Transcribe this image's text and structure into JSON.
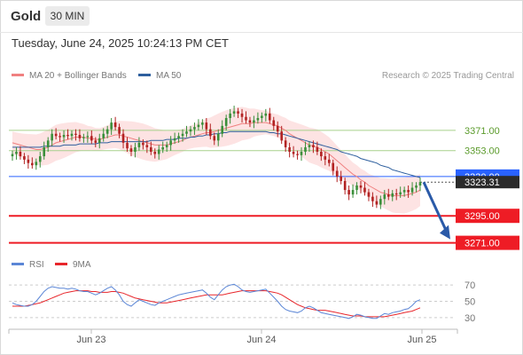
{
  "header": {
    "title": "Gold",
    "timeframe": "30 MIN",
    "datetime": "Tuesday, June 24, 2025 10:24:13 PM CET"
  },
  "legend": {
    "bollinger": {
      "label": "MA 20 + Bollinger Bands",
      "color": "#f08080"
    },
    "ma50": {
      "label": "MA 50",
      "color": "#2e5f9e"
    },
    "copyright": "Research © 2025 Trading Central"
  },
  "rsi_legend": {
    "rsi": {
      "label": "RSI",
      "color": "#5b86d6"
    },
    "ma9": {
      "label": "9MA",
      "color": "#e8262b"
    }
  },
  "colors": {
    "up": "#3a8f3a",
    "down": "#b22222",
    "band": "#fde3e3",
    "resistance": "#a7d08c",
    "support": "#ee1c25",
    "pivot": "#2962ff",
    "arrow": "#2a5aa8"
  },
  "chart_data": [
    {
      "type": "candlestick",
      "title": "Gold 30 MIN",
      "x_ticks": [
        "Jun 23",
        "Jun 24",
        "Jun 25"
      ],
      "ylim": [
        3262,
        3412
      ],
      "levels": [
        {
          "value": 3371.0,
          "label": "3371.00",
          "kind": "resistance"
        },
        {
          "value": 3353.0,
          "label": "3353.00",
          "kind": "resistance"
        },
        {
          "value": 3330.0,
          "label": "3330.00",
          "kind": "pivot"
        },
        {
          "value": 3295.0,
          "label": "3295.00",
          "kind": "support"
        },
        {
          "value": 3271.0,
          "label": "3271.00",
          "kind": "support"
        }
      ],
      "current_price_label": "3323.31",
      "forecast": {
        "from": 3325,
        "to": 3271,
        "direction": "down"
      },
      "series": [
        {
          "name": "Price",
          "values": [
            3350,
            3352,
            3348,
            3345,
            3342,
            3340,
            3343,
            3348,
            3356,
            3362,
            3368,
            3366,
            3365,
            3367,
            3366,
            3368,
            3367,
            3364,
            3365,
            3366,
            3362,
            3360,
            3364,
            3368,
            3372,
            3378,
            3374,
            3368,
            3360,
            3355,
            3352,
            3356,
            3360,
            3358,
            3356,
            3352,
            3350,
            3354,
            3356,
            3358,
            3362,
            3364,
            3366,
            3368,
            3370,
            3372,
            3374,
            3376,
            3378,
            3372,
            3366,
            3362,
            3368,
            3375,
            3382,
            3386,
            3388,
            3386,
            3383,
            3380,
            3378,
            3380,
            3382,
            3384,
            3386,
            3380,
            3375,
            3370,
            3362,
            3356,
            3352,
            3350,
            3349,
            3352,
            3356,
            3358,
            3356,
            3352,
            3348,
            3345,
            3342,
            3335,
            3330,
            3326,
            3318,
            3314,
            3318,
            3322,
            3320,
            3316,
            3312,
            3308,
            3305,
            3310,
            3314,
            3312,
            3315,
            3314,
            3316,
            3318,
            3316,
            3320,
            3322,
            3325
          ]
        },
        {
          "name": "MA 20",
          "values": [
            3360,
            3359,
            3358,
            3357,
            3356,
            3355,
            3354,
            3354,
            3355,
            3356,
            3358,
            3360,
            3361,
            3362,
            3363,
            3364,
            3365,
            3365,
            3365,
            3364,
            3364,
            3363,
            3363,
            3364,
            3365,
            3366,
            3367,
            3367,
            3366,
            3365,
            3364,
            3363,
            3362,
            3361,
            3360,
            3359,
            3358,
            3358,
            3358,
            3358,
            3359,
            3360,
            3361,
            3362,
            3364,
            3365,
            3366,
            3367,
            3368,
            3369,
            3369,
            3370,
            3371,
            3372,
            3373,
            3374,
            3375,
            3376,
            3377,
            3377,
            3377,
            3378,
            3378,
            3378,
            3378,
            3377,
            3376,
            3375,
            3373,
            3371,
            3368,
            3366,
            3364,
            3362,
            3360,
            3358,
            3357,
            3356,
            3354,
            3352,
            3350,
            3347,
            3344,
            3341,
            3338,
            3335,
            3332,
            3330,
            3327,
            3325,
            3322,
            3320,
            3318,
            3316,
            3315,
            3314,
            3313,
            3313,
            3313,
            3313,
            3314,
            3315,
            3316,
            3318
          ]
        },
        {
          "name": "MA 50",
          "values": [
            3356,
            3356,
            3356,
            3356,
            3356,
            3356,
            3356,
            3356,
            3357,
            3357,
            3357,
            3357,
            3357,
            3358,
            3358,
            3358,
            3358,
            3359,
            3359,
            3359,
            3359,
            3359,
            3360,
            3360,
            3360,
            3361,
            3361,
            3361,
            3361,
            3361,
            3361,
            3361,
            3361,
            3361,
            3361,
            3362,
            3362,
            3362,
            3362,
            3363,
            3363,
            3363,
            3364,
            3364,
            3364,
            3365,
            3365,
            3366,
            3366,
            3367,
            3367,
            3368,
            3368,
            3369,
            3369,
            3370,
            3370,
            3370,
            3370,
            3370,
            3370,
            3370,
            3370,
            3370,
            3370,
            3369,
            3369,
            3368,
            3368,
            3367,
            3366,
            3365,
            3364,
            3363,
            3362,
            3361,
            3360,
            3359,
            3358,
            3357,
            3356,
            3355,
            3354,
            3352,
            3351,
            3350,
            3349,
            3348,
            3346,
            3345,
            3344,
            3343,
            3342,
            3340,
            3339,
            3338,
            3336,
            3335,
            3334,
            3333,
            3332,
            3331,
            3330,
            3329
          ]
        }
      ]
    },
    {
      "type": "line",
      "title": "RSI",
      "ylim": [
        20,
        80
      ],
      "y_ticks": [
        70,
        50,
        30
      ],
      "series": [
        {
          "name": "RSI",
          "values": [
            48,
            46,
            45,
            44,
            44,
            46,
            50,
            56,
            62,
            66,
            68,
            67,
            66,
            66,
            65,
            66,
            65,
            63,
            62,
            62,
            60,
            58,
            60,
            63,
            66,
            68,
            64,
            58,
            50,
            46,
            44,
            48,
            52,
            50,
            48,
            46,
            45,
            48,
            50,
            52,
            54,
            56,
            58,
            59,
            60,
            61,
            62,
            63,
            64,
            60,
            55,
            52,
            58,
            64,
            68,
            70,
            71,
            68,
            64,
            62,
            61,
            62,
            63,
            64,
            65,
            60,
            55,
            50,
            44,
            40,
            38,
            37,
            36,
            38,
            42,
            44,
            42,
            39,
            36,
            35,
            34,
            33,
            32,
            31,
            30,
            29,
            31,
            34,
            33,
            31,
            30,
            29,
            29,
            32,
            35,
            34,
            36,
            37,
            38,
            40,
            41,
            45,
            50,
            52
          ]
        },
        {
          "name": "9MA",
          "values": [
            44,
            44,
            44,
            44,
            45,
            46,
            47,
            48,
            50,
            52,
            54,
            56,
            58,
            60,
            61,
            62,
            63,
            63,
            63,
            63,
            62,
            62,
            61,
            61,
            61,
            62,
            62,
            61,
            60,
            58,
            56,
            54,
            53,
            52,
            51,
            50,
            49,
            48,
            48,
            48,
            49,
            50,
            51,
            52,
            53,
            54,
            55,
            56,
            57,
            58,
            58,
            58,
            58,
            58,
            59,
            60,
            61,
            62,
            63,
            63,
            63,
            63,
            63,
            63,
            63,
            62,
            61,
            60,
            58,
            55,
            52,
            49,
            46,
            44,
            42,
            41,
            40,
            39,
            39,
            39,
            38,
            37,
            36,
            35,
            34,
            33,
            32,
            32,
            32,
            31,
            31,
            31,
            31,
            31,
            31,
            32,
            33,
            34,
            35,
            36,
            37,
            38,
            40,
            42
          ]
        }
      ]
    }
  ]
}
